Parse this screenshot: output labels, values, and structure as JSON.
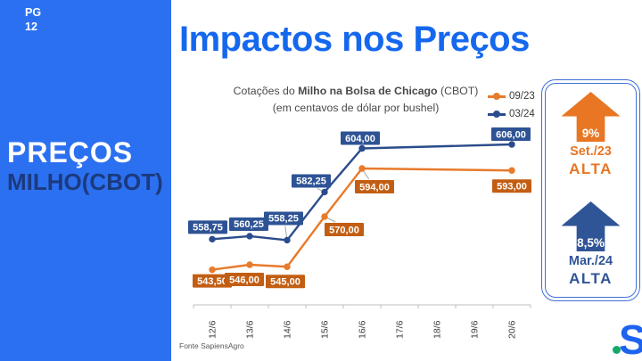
{
  "sidebar": {
    "pg_label": "PG",
    "pg_number": "12",
    "title_line1": "PREÇOS",
    "title_line2": "MILHO(CBOT)",
    "bg_color": "#2b70f0",
    "title_line2_color": "#1c3a7e"
  },
  "header": {
    "title": "Impactos nos Preços",
    "color": "#1568ee"
  },
  "chart_data": {
    "type": "line",
    "title": "Cotações do Milho na Bolsa de Chicago (CBOT)",
    "title_parts": {
      "prefix": "Cotações do ",
      "bold": "Milho na Bolsa de Chicago",
      "suffix": " (CBOT)"
    },
    "subtitle": "(em centavos de dólar por bushel)",
    "categories": [
      "12/6",
      "13/6",
      "14/6",
      "15/6",
      "16/6",
      "17/6",
      "18/6",
      "19/6",
      "20/6"
    ],
    "series": [
      {
        "name": "09/23",
        "color": "#E87A2B",
        "label_bg": "#C25E13",
        "points": [
          {
            "x": "12/6",
            "y": 543.5,
            "label": "543,50"
          },
          {
            "x": "13/6",
            "y": 546.0,
            "label": "546,00"
          },
          {
            "x": "14/6",
            "y": 545.0,
            "label": "545,00"
          },
          {
            "x": "15/6",
            "y": 570.0,
            "label": "570,00"
          },
          {
            "x": "16/6",
            "y": 594.0,
            "label": "594,00"
          },
          {
            "x": "20/6",
            "y": 593.0,
            "label": "593,00"
          }
        ]
      },
      {
        "name": "03/24",
        "color": "#2B4C8C",
        "label_bg": "#2E5395",
        "points": [
          {
            "x": "12/6",
            "y": 558.75,
            "label": "558,75"
          },
          {
            "x": "13/6",
            "y": 560.25,
            "label": "560,25"
          },
          {
            "x": "14/6",
            "y": 558.25,
            "label": "558,25"
          },
          {
            "x": "15/6",
            "y": 582.25,
            "label": "582,25"
          },
          {
            "x": "16/6",
            "y": 604.0,
            "label": "604,00"
          },
          {
            "x": "20/6",
            "y": 606.0,
            "label": "606,00"
          }
        ]
      }
    ],
    "xlabel": "",
    "ylabel": "",
    "ylim": [
      526,
      616
    ],
    "grid": false,
    "legend_position": "top-right",
    "source": "Fonte SapiensAgro"
  },
  "stats_panel": {
    "items": [
      {
        "pct": "9%",
        "period": "Set./23",
        "status": "ALTA",
        "color": "#E87623"
      },
      {
        "pct": "8,5%",
        "period": "Mar./24",
        "status": "ALTA",
        "color": "#2F5597"
      }
    ]
  },
  "logo": {
    "letter": "S",
    "color": "#1e63f0",
    "dot_color": "#12a96b"
  }
}
